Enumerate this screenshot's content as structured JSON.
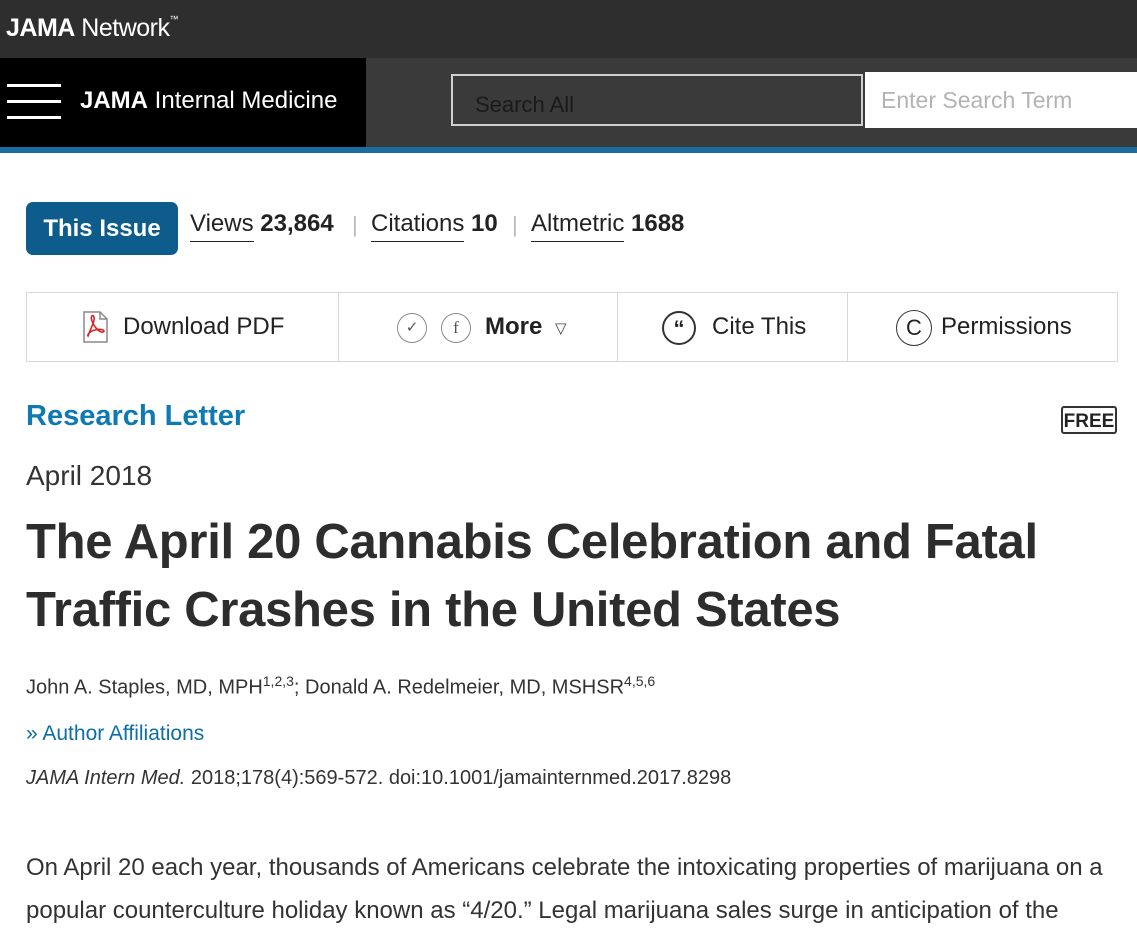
{
  "header": {
    "network_bold": "JAMA",
    "network_rest": " Network",
    "journal_bold": "JAMA",
    "journal_rest": " Internal Medicine",
    "search_scope": "Search All",
    "search_placeholder": "Enter Search Term",
    "accent_color": "#1b6da0"
  },
  "metrics": {
    "this_issue_label": "This Issue",
    "views_label": "Views",
    "views_value": "23,864",
    "citations_label": "Citations",
    "citations_value": "10",
    "altmetric_label": "Altmetric",
    "altmetric_value": "1688"
  },
  "toolbar": {
    "download_pdf": "Download PDF",
    "more": "More",
    "cite_this": "Cite This",
    "permissions": "Permissions",
    "icons": [
      "pdf-icon",
      "twitter-icon",
      "facebook-icon",
      "caret-down-icon",
      "quote-icon",
      "copyright-icon"
    ]
  },
  "article": {
    "type": "Research Letter",
    "free_badge": "FREE",
    "date": "April 2018",
    "title": "The April 20 Cannabis Celebration and Fatal Traffic Crashes in the United States",
    "author1": "John A. Staples, MD, MPH",
    "author1_sup": "1,2,3",
    "author_sep": "; ",
    "author2": "Donald A. Redelmeier, MD, MSHSR",
    "author2_sup": "4,5,6",
    "affiliations_link": "Author Affiliations",
    "citation_journal": "JAMA Intern Med.",
    "citation_rest": " 2018;178(4):569-572. doi:10.1001/jamainternmed.2017.8298",
    "body": "On April 20 each year, thousands of Americans celebrate the intoxicating properties of marijuana on a popular counterculture holiday known as “4/20.” Legal marijuana sales surge in anticipation of the"
  }
}
